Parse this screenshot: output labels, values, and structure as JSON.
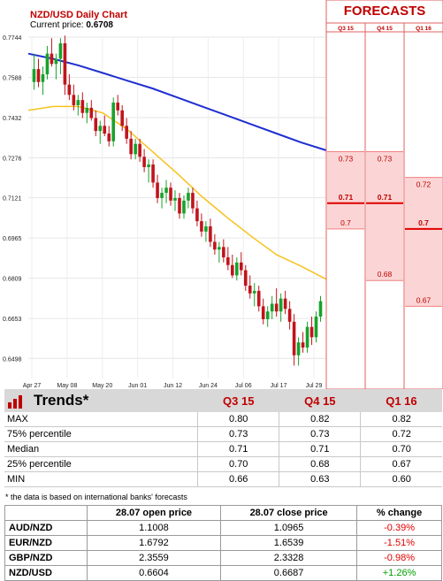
{
  "header": {
    "title": "NZD/USD Daily Chart",
    "price_label": "Current price:",
    "price_value": "0.6708"
  },
  "forecasts_title": "FORECASTS",
  "colors": {
    "up": "#17a22b",
    "down": "#c0141c",
    "ma_slow": "#1f2fd0",
    "ma_fast": "#f7c21e",
    "accent": "#c00000",
    "forecast_line": "#e00000",
    "forecast_fill": "#fbd5d5"
  },
  "chart_data": [
    {
      "type": "candlestick",
      "title": "NZD/USD Daily Chart",
      "yticks": [
        "0.7744",
        "0.7588",
        "0.7432",
        "0.7276",
        "0.7121",
        "0.6965",
        "0.6809",
        "0.6653",
        "0.6498"
      ],
      "ylim": [
        0.642,
        0.7744
      ],
      "xticks": [
        "Apr 27",
        "May 08",
        "May 20",
        "Jun 01",
        "Jun 12",
        "Jun 24",
        "Jul 06",
        "Jul 17",
        "Jul 29"
      ],
      "grid": true,
      "candles": [
        [
          0.757,
          0.768,
          0.754,
          0.762
        ],
        [
          0.762,
          0.766,
          0.755,
          0.757
        ],
        [
          0.757,
          0.763,
          0.752,
          0.76
        ],
        [
          0.76,
          0.771,
          0.758,
          0.768
        ],
        [
          0.768,
          0.774,
          0.763,
          0.764
        ],
        [
          0.764,
          0.768,
          0.758,
          0.766
        ],
        [
          0.766,
          0.774,
          0.76,
          0.772
        ],
        [
          0.772,
          0.775,
          0.752,
          0.756
        ],
        [
          0.756,
          0.76,
          0.75,
          0.752
        ],
        [
          0.752,
          0.756,
          0.746,
          0.748
        ],
        [
          0.748,
          0.752,
          0.744,
          0.75
        ],
        [
          0.75,
          0.753,
          0.743,
          0.745
        ],
        [
          0.745,
          0.749,
          0.741,
          0.747
        ],
        [
          0.747,
          0.75,
          0.742,
          0.743
        ],
        [
          0.743,
          0.746,
          0.736,
          0.738
        ],
        [
          0.738,
          0.742,
          0.733,
          0.74
        ],
        [
          0.74,
          0.744,
          0.736,
          0.737
        ],
        [
          0.737,
          0.74,
          0.732,
          0.734
        ],
        [
          0.734,
          0.751,
          0.732,
          0.749
        ],
        [
          0.749,
          0.752,
          0.744,
          0.746
        ],
        [
          0.746,
          0.748,
          0.738,
          0.74
        ],
        [
          0.74,
          0.743,
          0.733,
          0.735
        ],
        [
          0.735,
          0.738,
          0.727,
          0.729
        ],
        [
          0.729,
          0.735,
          0.727,
          0.733
        ],
        [
          0.733,
          0.735,
          0.726,
          0.728
        ],
        [
          0.728,
          0.731,
          0.722,
          0.724
        ],
        [
          0.724,
          0.727,
          0.718,
          0.725
        ],
        [
          0.725,
          0.727,
          0.716,
          0.718
        ],
        [
          0.718,
          0.721,
          0.71,
          0.712
        ],
        [
          0.712,
          0.716,
          0.708,
          0.714
        ],
        [
          0.714,
          0.719,
          0.71,
          0.716
        ],
        [
          0.716,
          0.718,
          0.709,
          0.711
        ],
        [
          0.711,
          0.715,
          0.707,
          0.712
        ],
        [
          0.712,
          0.714,
          0.704,
          0.706
        ],
        [
          0.706,
          0.713,
          0.704,
          0.711
        ],
        [
          0.711,
          0.716,
          0.708,
          0.714
        ],
        [
          0.714,
          0.716,
          0.706,
          0.708
        ],
        [
          0.708,
          0.711,
          0.701,
          0.703
        ],
        [
          0.703,
          0.706,
          0.697,
          0.699
        ],
        [
          0.699,
          0.703,
          0.695,
          0.701
        ],
        [
          0.701,
          0.704,
          0.693,
          0.695
        ],
        [
          0.695,
          0.698,
          0.69,
          0.692
        ],
        [
          0.692,
          0.695,
          0.687,
          0.693
        ],
        [
          0.693,
          0.696,
          0.687,
          0.689
        ],
        [
          0.689,
          0.693,
          0.684,
          0.686
        ],
        [
          0.686,
          0.69,
          0.681,
          0.682
        ],
        [
          0.682,
          0.689,
          0.68,
          0.687
        ],
        [
          0.687,
          0.691,
          0.682,
          0.684
        ],
        [
          0.684,
          0.686,
          0.676,
          0.678
        ],
        [
          0.678,
          0.682,
          0.673,
          0.675
        ],
        [
          0.675,
          0.679,
          0.67,
          0.676
        ],
        [
          0.676,
          0.678,
          0.668,
          0.67
        ],
        [
          0.67,
          0.673,
          0.663,
          0.665
        ],
        [
          0.665,
          0.67,
          0.662,
          0.668
        ],
        [
          0.668,
          0.674,
          0.665,
          0.671
        ],
        [
          0.671,
          0.677,
          0.666,
          0.668
        ],
        [
          0.668,
          0.675,
          0.664,
          0.673
        ],
        [
          0.673,
          0.676,
          0.667,
          0.669
        ],
        [
          0.669,
          0.672,
          0.661,
          0.664
        ],
        [
          0.664,
          0.667,
          0.647,
          0.651
        ],
        [
          0.651,
          0.658,
          0.647,
          0.656
        ],
        [
          0.656,
          0.66,
          0.652,
          0.654
        ],
        [
          0.654,
          0.664,
          0.652,
          0.662
        ],
        [
          0.662,
          0.666,
          0.655,
          0.658
        ],
        [
          0.658,
          0.668,
          0.656,
          0.666
        ],
        [
          0.666,
          0.674,
          0.664,
          0.672
        ]
      ],
      "ma_slow": [
        0.768,
        0.766,
        0.7635,
        0.7605,
        0.7575,
        0.7545,
        0.751,
        0.7475,
        0.744,
        0.7405,
        0.737,
        0.7335,
        0.7305
      ],
      "ma_fast": [
        0.746,
        0.7475,
        0.7475,
        0.745,
        0.7385,
        0.73,
        0.7215,
        0.7125,
        0.7045,
        0.697,
        0.69,
        0.6855,
        0.6805
      ]
    },
    {
      "type": "forecast-bands",
      "title": "FORECASTS",
      "categories": [
        "Q3 15",
        "Q4 15",
        "Q1 16"
      ],
      "max": [
        0.73,
        0.73,
        0.72
      ],
      "median": [
        0.71,
        0.71,
        0.7
      ],
      "min": [
        0.7,
        0.68,
        0.67
      ],
      "labels": {
        "max": [
          "0.73",
          "0.73",
          "0.72"
        ],
        "median": [
          "0.71",
          "0.71",
          "0.7"
        ],
        "min": [
          "0.7",
          "0.68",
          "0.67"
        ]
      }
    }
  ],
  "trends": {
    "title": "Trends*",
    "columns": [
      "Q3 15",
      "Q4 15",
      "Q1 16"
    ],
    "rows": [
      {
        "label": "MAX",
        "values": [
          "0.80",
          "0.82",
          "0.82"
        ]
      },
      {
        "label": "75% percentile",
        "values": [
          "0.73",
          "0.73",
          "0.72"
        ]
      },
      {
        "label": "Median",
        "values": [
          "0.71",
          "0.71",
          "0.70"
        ]
      },
      {
        "label": "25% percentile",
        "values": [
          "0.70",
          "0.68",
          "0.67"
        ]
      },
      {
        "label": "MIN",
        "values": [
          "0.66",
          "0.63",
          "0.60"
        ]
      }
    ],
    "note": "* the data is based on international banks' forecasts"
  },
  "pairs": {
    "columns": [
      "",
      "28.07 open price",
      "28.07 close price",
      "% change"
    ],
    "rows": [
      {
        "pair": "AUD/NZD",
        "open": "1.1008",
        "close": "1.0965",
        "change": "-0.39%",
        "dir": "neg"
      },
      {
        "pair": "EUR/NZD",
        "open": "1.6792",
        "close": "1.6539",
        "change": "-1.51%",
        "dir": "neg"
      },
      {
        "pair": "GBP/NZD",
        "open": "2.3559",
        "close": "2.3328",
        "change": "-0.98%",
        "dir": "neg"
      },
      {
        "pair": "NZD/USD",
        "open": "0.6604",
        "close": "0.6687",
        "change": "+1.26%",
        "dir": "pos"
      }
    ]
  }
}
